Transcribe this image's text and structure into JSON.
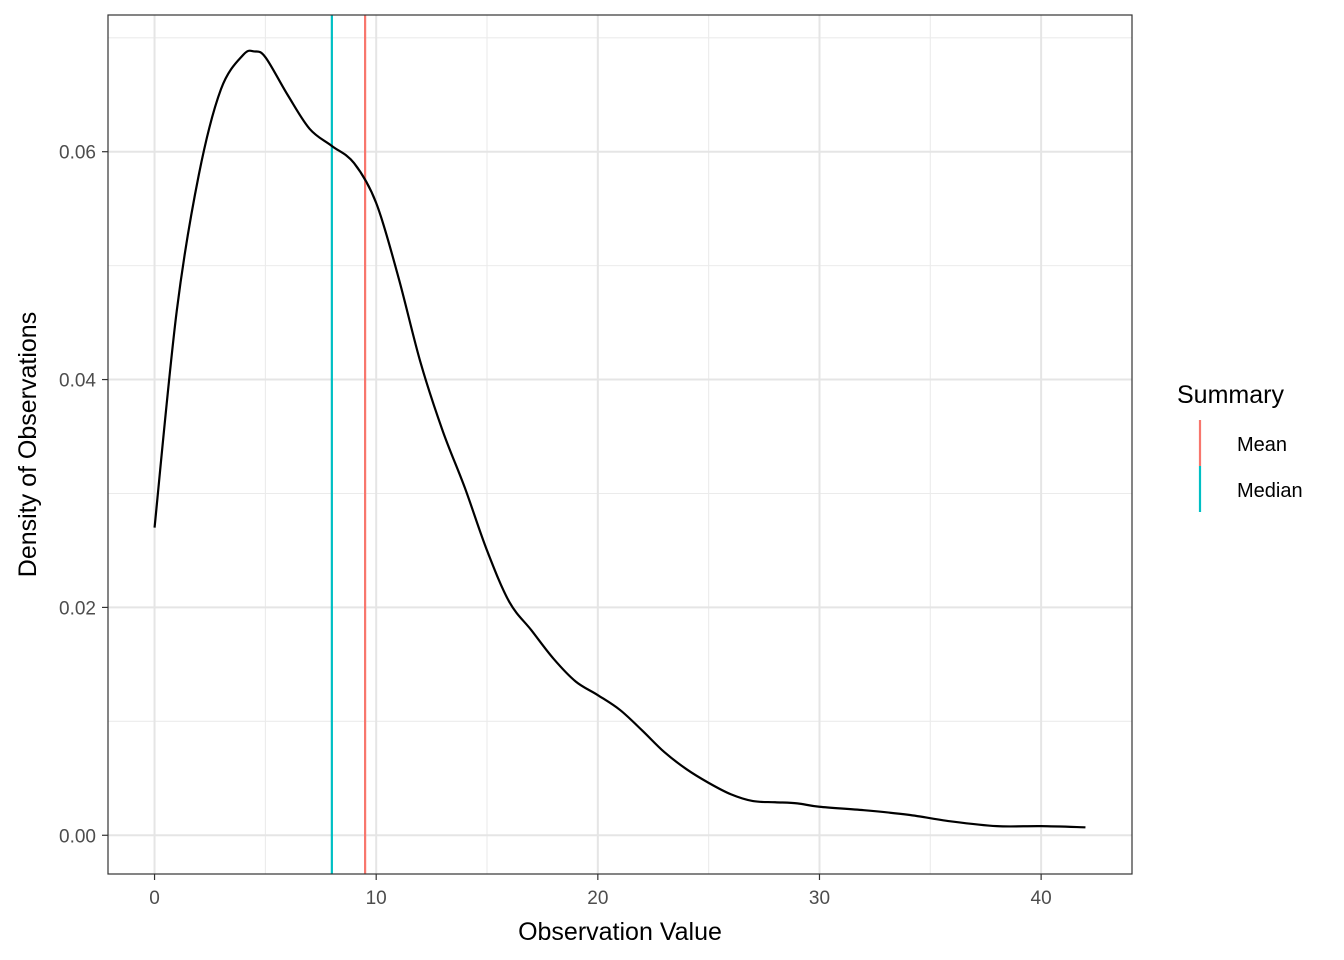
{
  "chart_data": {
    "type": "line",
    "title": "",
    "xlabel": "Observation Value",
    "ylabel": "Density of Observations",
    "xlim": [
      -2.1,
      44.1
    ],
    "ylim": [
      -0.0034,
      0.072
    ],
    "x_ticks": [
      0,
      10,
      20,
      30,
      40
    ],
    "x_tick_labels": [
      "0",
      "10",
      "20",
      "30",
      "40"
    ],
    "y_ticks": [
      0.0,
      0.02,
      0.04,
      0.06
    ],
    "y_tick_labels": [
      "0.00",
      "0.02",
      "0.04",
      "0.06"
    ],
    "grid": true,
    "density_curve": {
      "color": "#000000",
      "x": [
        0,
        1,
        2,
        3,
        4,
        4.5,
        5,
        6,
        7,
        8,
        9,
        10,
        11,
        12,
        13,
        14,
        15,
        16,
        17,
        18,
        19,
        20,
        21,
        22,
        23,
        24,
        25,
        26,
        27,
        28,
        29,
        30,
        32,
        34,
        36,
        38,
        40,
        42
      ],
      "y": [
        0.027,
        0.046,
        0.058,
        0.0655,
        0.0685,
        0.0688,
        0.0683,
        0.065,
        0.062,
        0.0605,
        0.059,
        0.0555,
        0.049,
        0.0415,
        0.0355,
        0.0305,
        0.025,
        0.0205,
        0.018,
        0.0155,
        0.0135,
        0.0123,
        0.011,
        0.0092,
        0.0073,
        0.0058,
        0.0046,
        0.0036,
        0.003,
        0.0029,
        0.0028,
        0.0025,
        0.0022,
        0.0018,
        0.0012,
        0.0008,
        0.0008,
        0.0007
      ]
    },
    "reference_lines": [
      {
        "name": "Mean",
        "x": 9.5,
        "color": "#F8766D"
      },
      {
        "name": "Median",
        "x": 8.0,
        "color": "#00BFC4"
      }
    ],
    "legend": {
      "title": "Summary",
      "position": "right",
      "entries": [
        {
          "label": "Mean",
          "color": "#F8766D"
        },
        {
          "label": "Median",
          "color": "#00BFC4"
        }
      ]
    }
  }
}
